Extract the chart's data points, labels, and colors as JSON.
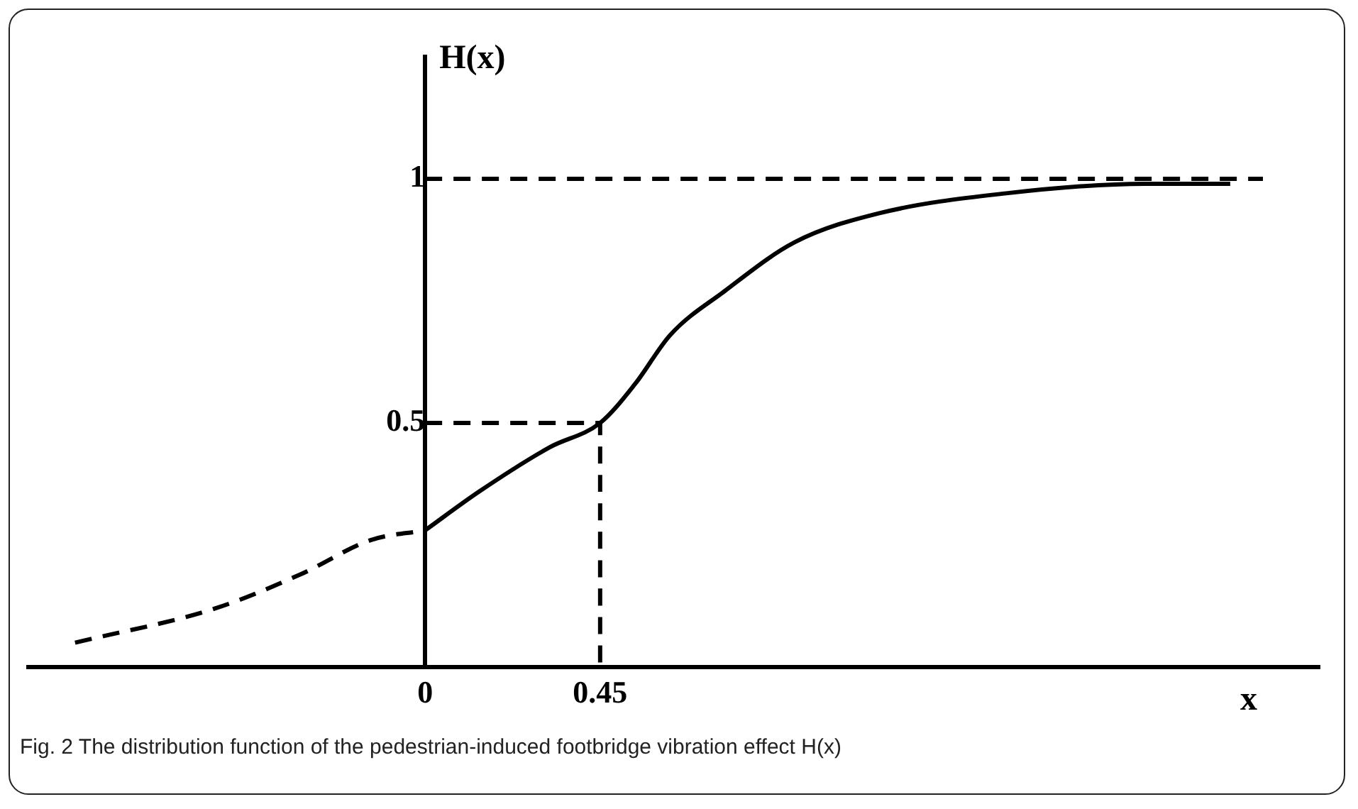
{
  "chart_data": {
    "type": "line",
    "xlabel": "x",
    "ylabel": "H(x)",
    "xlim": [
      -1.02,
      2.3
    ],
    "ylim": [
      0,
      1.25
    ],
    "xticks": [
      0,
      0.45
    ],
    "yticks": [
      0.5,
      1
    ],
    "grid": false,
    "legend": false,
    "marker": "none",
    "tick_labels": "xy",
    "series": [
      {
        "color": "#000000",
        "line_style": "dashed",
        "x": [
          -0.9,
          -0.54,
          -0.32,
          -0.14,
          0
        ],
        "values": [
          0.05,
          0.12,
          0.19,
          0.26,
          0.28
        ]
      },
      {
        "color": "#000000",
        "line_style": "solid",
        "x": [
          0,
          0.14,
          0.32,
          0.45,
          0.54,
          0.63,
          0.77,
          0.95,
          1.17,
          1.49,
          1.85,
          2.07
        ],
        "values": [
          0.28,
          0.36,
          0.45,
          0.5,
          0.58,
          0.68,
          0.77,
          0.87,
          0.93,
          0.97,
          0.99,
          0.99
        ]
      },
      {
        "color": "#000000",
        "line_style": "dashed",
        "x": [
          0,
          0.45,
          0.45
        ],
        "values": [
          0.5,
          0.5,
          0
        ]
      }
    ],
    "ref_lines": [
      {
        "axis": "y",
        "value": 1,
        "line_style": "dashed",
        "color": "#000000"
      }
    ],
    "annotations": [
      "Fig. 2 The distribution function of the pedestrian-induced footbridge vibration effect H(x)"
    ]
  }
}
